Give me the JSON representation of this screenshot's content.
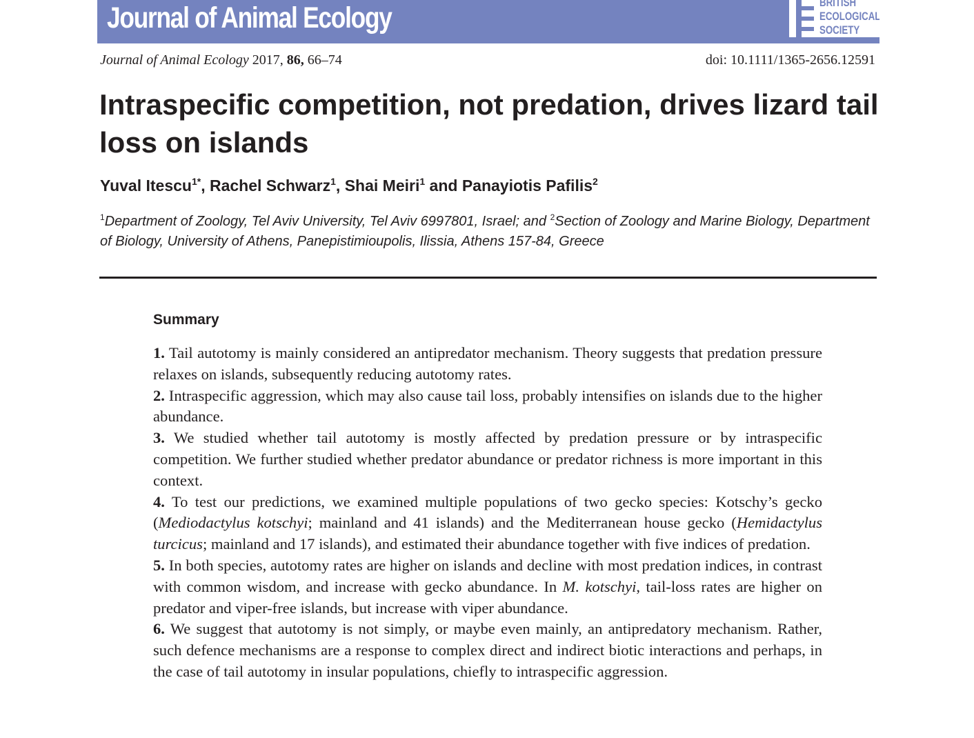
{
  "header": {
    "journal_name": "Journal of Animal Ecology",
    "society_logo_lines": [
      "BRITISH",
      "ECOLOGICAL",
      "SOCIETY"
    ],
    "banner_color": "#7483bf"
  },
  "citation": {
    "journal": "Journal of Animal Ecology",
    "year": "2017,",
    "volume": "86,",
    "pages": "66–74",
    "doi": "doi: 10.1111/1365-2656.12591"
  },
  "title": "Intraspecific competition, not predation, drives lizard tail loss on islands",
  "authors": [
    {
      "name": "Yuval Itescu",
      "sup": "1*",
      "sep": ", "
    },
    {
      "name": "Rachel Schwarz",
      "sup": "1",
      "sep": ", "
    },
    {
      "name": "Shai Meiri",
      "sup": "1",
      "sep": " and "
    },
    {
      "name": "Panayiotis Pafilis",
      "sup": "2",
      "sep": ""
    }
  ],
  "affiliations": [
    {
      "sup": "1",
      "text": "Department of Zoology, Tel Aviv University, Tel Aviv 6997801, Israel; and "
    },
    {
      "sup": "2",
      "text": "Section of Zoology and Marine Biology, Department of Biology, University of Athens, Panepistimioupolis, Ilissia, Athens 157-84, Greece"
    }
  ],
  "summary": {
    "heading": "Summary",
    "items": [
      {
        "num": "1.",
        "segments": [
          {
            "t": "Tail autotomy is mainly considered an antipredator mechanism. Theory suggests that predation pressure relaxes on islands, subsequently reducing autotomy rates."
          }
        ]
      },
      {
        "num": "2.",
        "segments": [
          {
            "t": "Intraspecific aggression, which may also cause tail loss, probably intensifies on islands due to the higher abundance."
          }
        ]
      },
      {
        "num": "3.",
        "segments": [
          {
            "t": "We studied whether tail autotomy is mostly affected by predation pressure or by intraspecific competition. We further studied whether predator abundance or predator richness is more important in this context."
          }
        ]
      },
      {
        "num": "4.",
        "segments": [
          {
            "t": "To test our predictions, we examined multiple populations of two gecko species: Kotschy’s gecko ("
          },
          {
            "t": "Mediodactylus kotschyi",
            "i": true
          },
          {
            "t": "; mainland and 41 islands) and the Mediterranean house gecko ("
          },
          {
            "t": "Hemidactylus turcicus",
            "i": true
          },
          {
            "t": "; mainland and 17 islands), and estimated their abundance together with five indices of predation."
          }
        ]
      },
      {
        "num": "5.",
        "segments": [
          {
            "t": "In both species, autotomy rates are higher on islands and decline with most predation indices, in contrast with common wisdom, and increase with gecko abundance. In "
          },
          {
            "t": "M. kotschyi",
            "i": true
          },
          {
            "t": ", tail-loss rates are higher on predator and viper-free islands, but increase with viper abundance."
          }
        ]
      },
      {
        "num": "6.",
        "segments": [
          {
            "t": "We suggest that autotomy is not simply, or maybe even mainly, an antipredatory mechanism. Rather, such defence mechanisms are a response to complex direct and indirect biotic interactions and perhaps, in the case of tail autotomy in insular populations, chiefly to intraspecific aggression."
          }
        ]
      }
    ]
  }
}
